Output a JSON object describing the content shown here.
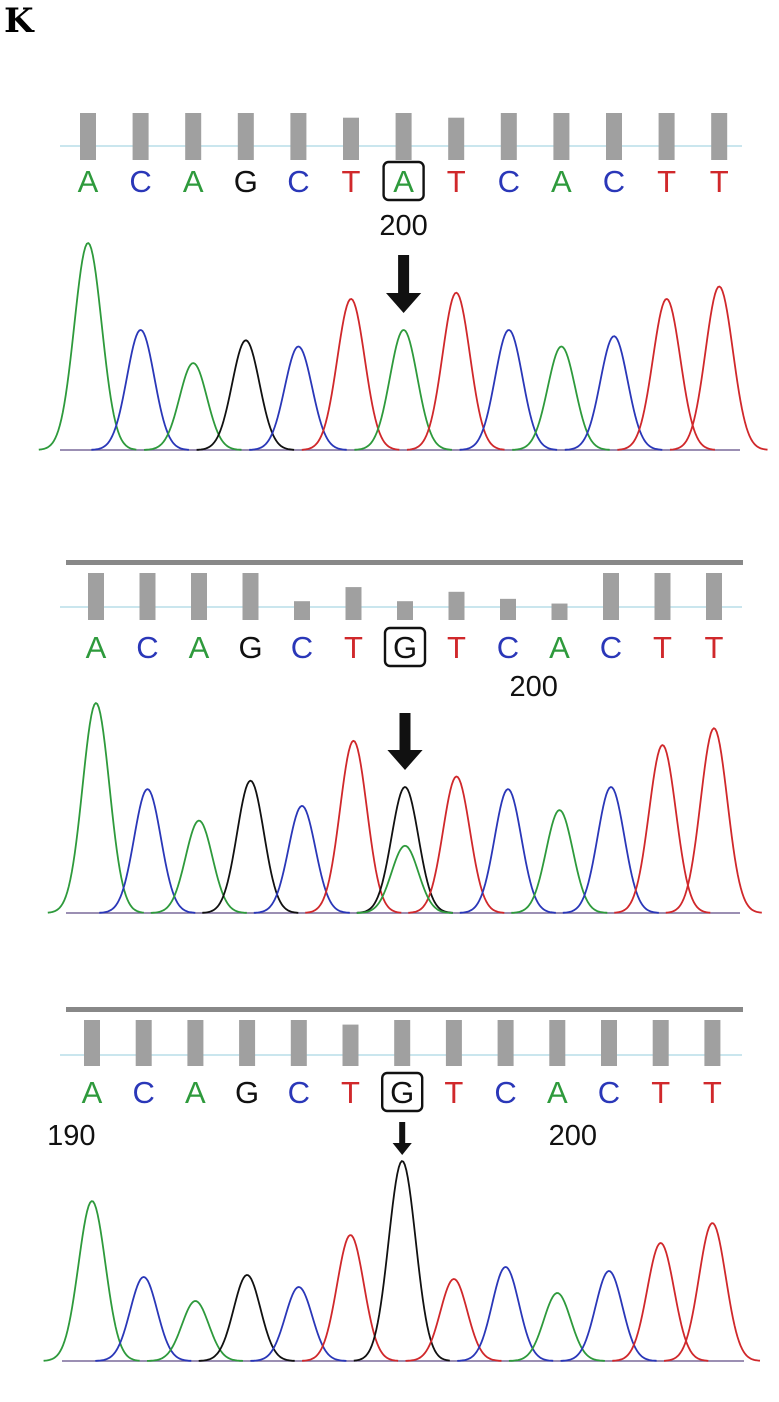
{
  "panel_label": "K",
  "colors": {
    "A": "#2e9a3c",
    "C": "#2a37b8",
    "G": "#111111",
    "T": "#d0282b",
    "bar": "#a0a0a0",
    "baseline_line": "#b8dde8",
    "divider": "#888888"
  },
  "panels": [
    {
      "name": "top",
      "sequence": [
        "A",
        "C",
        "A",
        "G",
        "C",
        "T",
        "A",
        "T",
        "C",
        "A",
        "C",
        "T",
        "T"
      ],
      "highlight_index": 6,
      "position_labels": [
        {
          "text": "200",
          "at_index": 6
        }
      ],
      "quality": [
        1,
        1,
        1,
        1,
        1,
        0.9,
        1,
        0.9,
        1,
        1,
        1,
        1,
        1
      ],
      "peaks": [
        {
          "base": "A",
          "height": 1.0
        },
        {
          "base": "C",
          "height": 0.58
        },
        {
          "base": "A",
          "height": 0.42
        },
        {
          "base": "G",
          "height": 0.53
        },
        {
          "base": "C",
          "height": 0.5
        },
        {
          "base": "T",
          "height": 0.73
        },
        {
          "base": "A",
          "height": 0.58
        },
        {
          "base": "T",
          "height": 0.76
        },
        {
          "base": "C",
          "height": 0.58
        },
        {
          "base": "A",
          "height": 0.5
        },
        {
          "base": "C",
          "height": 0.55
        },
        {
          "base": "T",
          "height": 0.73
        },
        {
          "base": "T",
          "height": 0.79
        }
      ],
      "secondary_peaks": []
    },
    {
      "name": "middle",
      "sequence": [
        "A",
        "C",
        "A",
        "G",
        "C",
        "T",
        "G",
        "T",
        "C",
        "A",
        "C",
        "T",
        "T"
      ],
      "highlight_index": 6,
      "position_labels": [
        {
          "text": "200",
          "at_index": 8.5
        }
      ],
      "quality": [
        1,
        1,
        1,
        1,
        0.4,
        0.7,
        0.4,
        0.6,
        0.45,
        0.35,
        1,
        1,
        1
      ],
      "peaks": [
        {
          "base": "A",
          "height": 1.0
        },
        {
          "base": "C",
          "height": 0.59
        },
        {
          "base": "A",
          "height": 0.44
        },
        {
          "base": "G",
          "height": 0.63
        },
        {
          "base": "C",
          "height": 0.51
        },
        {
          "base": "T",
          "height": 0.82
        },
        {
          "base": "G",
          "height": 0.6
        },
        {
          "base": "T",
          "height": 0.65
        },
        {
          "base": "C",
          "height": 0.59
        },
        {
          "base": "A",
          "height": 0.49
        },
        {
          "base": "C",
          "height": 0.6
        },
        {
          "base": "T",
          "height": 0.8
        },
        {
          "base": "T",
          "height": 0.88
        }
      ],
      "secondary_peaks": [
        {
          "base": "A",
          "at_index": 6,
          "height": 0.32
        }
      ]
    },
    {
      "name": "bottom",
      "sequence": [
        "A",
        "C",
        "A",
        "G",
        "C",
        "T",
        "G",
        "T",
        "C",
        "A",
        "C",
        "T",
        "T"
      ],
      "highlight_index": 6,
      "position_labels": [
        {
          "text": "190",
          "at_index": -0.4
        },
        {
          "text": "200",
          "at_index": 9.3
        }
      ],
      "quality": [
        1,
        1,
        1,
        1,
        1,
        0.9,
        1,
        1,
        1,
        1,
        1,
        1,
        1
      ],
      "peaks": [
        {
          "base": "A",
          "height": 0.8
        },
        {
          "base": "C",
          "height": 0.42
        },
        {
          "base": "A",
          "height": 0.3
        },
        {
          "base": "G",
          "height": 0.43
        },
        {
          "base": "C",
          "height": 0.37
        },
        {
          "base": "T",
          "height": 0.63
        },
        {
          "base": "G",
          "height": 1.0
        },
        {
          "base": "T",
          "height": 0.41
        },
        {
          "base": "C",
          "height": 0.47
        },
        {
          "base": "A",
          "height": 0.34
        },
        {
          "base": "C",
          "height": 0.45
        },
        {
          "base": "T",
          "height": 0.59
        },
        {
          "base": "T",
          "height": 0.69
        }
      ],
      "secondary_peaks": []
    }
  ]
}
